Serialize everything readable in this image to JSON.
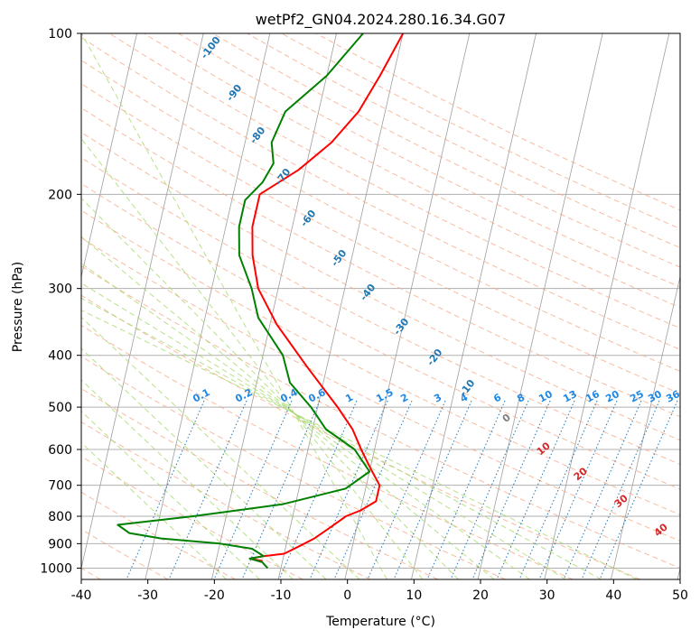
{
  "chart_data": {
    "type": "line",
    "title": "wetPf2_GN04.2024.280.16.34.G07",
    "xlabel": "Temperature (°C)",
    "ylabel": "Pressure (hPa)",
    "xlim": [
      -40,
      50
    ],
    "ylim": [
      1050,
      100
    ],
    "yscale": "log",
    "grid": true,
    "x_ticks": [
      -40,
      -30,
      -20,
      -10,
      0,
      10,
      20,
      30,
      40,
      50
    ],
    "y_ticks": [
      1000,
      900,
      800,
      700,
      600,
      500,
      400,
      300,
      200,
      100
    ],
    "series": [
      {
        "color": "#ff0000",
        "points": [
          [
            -10,
            100
          ],
          [
            -12,
            120
          ],
          [
            -14,
            140
          ],
          [
            -17,
            160
          ],
          [
            -21,
            180
          ],
          [
            -26,
            200
          ],
          [
            -26,
            230
          ],
          [
            -25,
            260
          ],
          [
            -23,
            300
          ],
          [
            -19,
            350
          ],
          [
            -13,
            420
          ],
          [
            -7,
            500
          ],
          [
            -4,
            550
          ],
          [
            -2,
            600
          ],
          [
            0,
            650
          ],
          [
            2,
            700
          ],
          [
            2,
            750
          ],
          [
            0,
            780
          ],
          [
            -2,
            800
          ],
          [
            -4,
            840
          ],
          [
            -6,
            880
          ],
          [
            -8,
            910
          ],
          [
            -10,
            940
          ],
          [
            -13,
            950
          ],
          [
            -15,
            960
          ],
          [
            -13,
            970
          ]
        ]
      },
      {
        "color": "#008000",
        "points": [
          [
            -16,
            100
          ],
          [
            -20,
            120
          ],
          [
            -25,
            140
          ],
          [
            -26,
            160
          ],
          [
            -25,
            175
          ],
          [
            -26,
            190
          ],
          [
            -28,
            205
          ],
          [
            -28,
            230
          ],
          [
            -27,
            260
          ],
          [
            -24,
            300
          ],
          [
            -22,
            340
          ],
          [
            -17,
            400
          ],
          [
            -15,
            450
          ],
          [
            -11,
            500
          ],
          [
            -8,
            550
          ],
          [
            -3,
            600
          ],
          [
            0,
            660
          ],
          [
            -3,
            710
          ],
          [
            -12,
            760
          ],
          [
            -25,
            800
          ],
          [
            -36,
            830
          ],
          [
            -34,
            860
          ],
          [
            -29,
            880
          ],
          [
            -20,
            900
          ],
          [
            -15,
            920
          ],
          [
            -13,
            950
          ],
          [
            -15,
            960
          ],
          [
            -13,
            975
          ],
          [
            -12,
            1000
          ]
        ]
      }
    ],
    "dry_adiabat_labels": [
      "-100",
      "-90",
      "-80",
      "-70",
      "-60",
      "-50",
      "-40",
      "-30",
      "-20",
      "-10"
    ],
    "mixing_ratio_labels": [
      "0.1",
      "0.2",
      "0.4",
      "0.6",
      "1",
      "1.5",
      "2",
      "3",
      "4",
      "6",
      "8",
      "10",
      "13",
      "16",
      "20",
      "25",
      "30",
      "36"
    ],
    "moist_adiabat_labels": [
      "0",
      "10",
      "20",
      "30",
      "40"
    ],
    "colors": {
      "temperature": "#ff0000",
      "dewpoint": "#008000",
      "dry_adiabat": "#f4a582",
      "moist_adiabat": "#a6d96a",
      "mixing_ratio": "#1f77b4",
      "isotherm": "#9e9e9e",
      "dry_label": "#1f77b4",
      "mixing_label": "#1e88e5",
      "moist_label": "#d62728"
    }
  }
}
